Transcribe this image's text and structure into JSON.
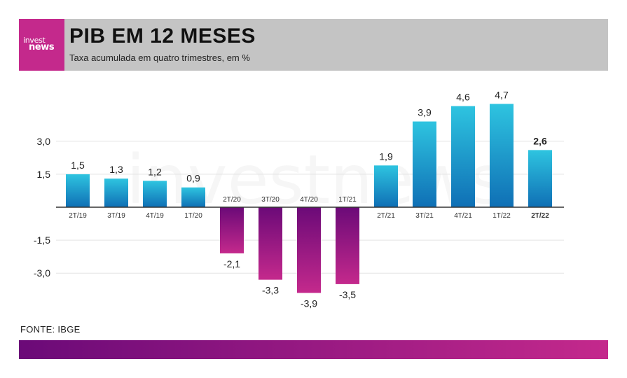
{
  "header": {
    "logo_line1": "invest",
    "logo_line2": "news",
    "title": "PIB EM 12 MESES",
    "subtitle": "Taxa acumulada em quatro trimestres, em %"
  },
  "source": "FONTE: IBGE",
  "watermark": "investnews",
  "colors": {
    "positive_top": "#2ec4e0",
    "positive_bottom": "#0f6fb5",
    "negative_top": "#6b0a78",
    "negative_bottom": "#c4298c",
    "brand": "#c4298c"
  },
  "chart_data": {
    "type": "bar",
    "categories": [
      "2T/19",
      "3T/19",
      "4T/19",
      "1T/20",
      "2T/20",
      "3T/20",
      "4T/20",
      "1T/21",
      "2T/21",
      "3T/21",
      "4T/21",
      "1T/22",
      "2T/22"
    ],
    "values": [
      1.5,
      1.3,
      1.2,
      0.9,
      -2.1,
      -3.3,
      -3.9,
      -3.5,
      1.9,
      3.9,
      4.6,
      4.7,
      2.6
    ],
    "value_labels": [
      "1,5",
      "1,3",
      "1,2",
      "0,9",
      "-2,1",
      "-3,3",
      "-3,9",
      "-3,5",
      "1,9",
      "3,9",
      "4,6",
      "4,7",
      "2,6"
    ],
    "highlight_index": 12,
    "y_ticks": [
      3.0,
      1.5,
      -1.5,
      -3.0
    ],
    "y_tick_labels": [
      "3,0",
      "1,5",
      "-1,5",
      "-3,0"
    ],
    "ylim": [
      -4.5,
      6.0
    ],
    "grid": true,
    "title": "PIB EM 12 MESES",
    "xlabel": "",
    "ylabel": ""
  }
}
